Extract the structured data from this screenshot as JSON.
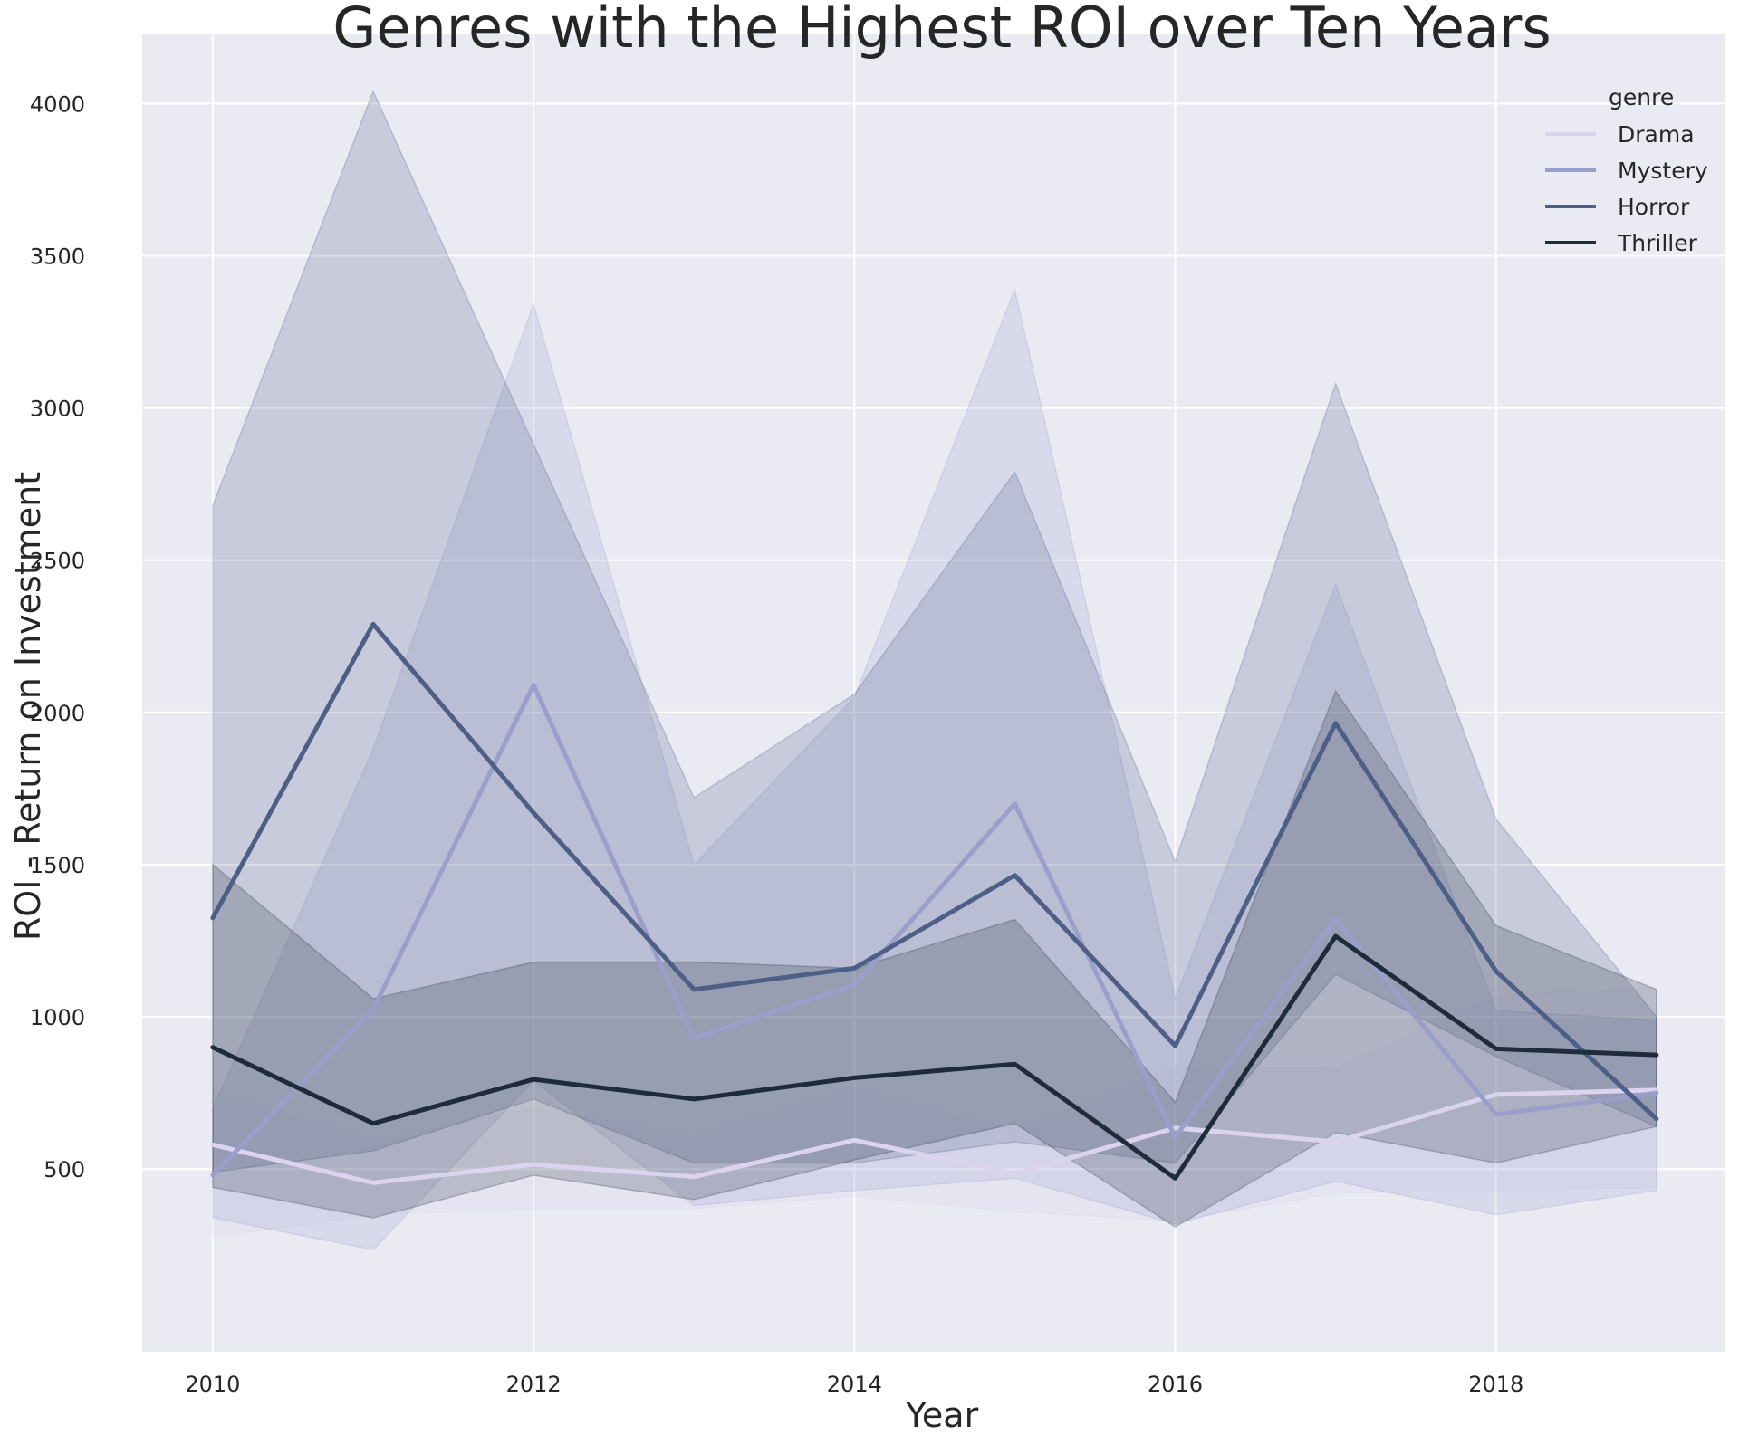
{
  "chart_data": {
    "type": "line",
    "title": "Genres with the Highest ROI over Ten Years",
    "xlabel": "Year",
    "ylabel": "ROI - Return on Investment",
    "xlim": [
      2009.56,
      2019.43
    ],
    "ylim": [
      -100,
      4230
    ],
    "x_ticks": [
      2010,
      2012,
      2014,
      2016,
      2018
    ],
    "y_ticks": [
      500,
      1000,
      1500,
      2000,
      2500,
      3000,
      3500,
      4000
    ],
    "grid": true,
    "legend": {
      "title": "genre",
      "position": "top-right"
    },
    "x": [
      2010,
      2011,
      2012,
      2013,
      2014,
      2015,
      2016,
      2017,
      2018,
      2019
    ],
    "series": [
      {
        "name": "Drama",
        "color": "#dcd3ee",
        "values": [
          580,
          455,
          515,
          475,
          595,
          485,
          635,
          590,
          745,
          760
        ],
        "ci_low": [
          275,
          350,
          370,
          370,
          410,
          360,
          330,
          420,
          430,
          440
        ],
        "ci_high": [
          760,
          600,
          700,
          615,
          770,
          630,
          840,
          830,
          1070,
          1100
        ]
      },
      {
        "name": "Mystery",
        "color": "#9a9ecb",
        "values": [
          480,
          1025,
          2090,
          930,
          1105,
          1700,
          605,
          1320,
          680,
          750
        ],
        "ci_low": [
          340,
          235,
          790,
          380,
          430,
          470,
          320,
          460,
          350,
          430
        ],
        "ci_high": [
          700,
          1880,
          3340,
          1500,
          2050,
          3390,
          1060,
          2420,
          1020,
          990
        ]
      },
      {
        "name": "Horror",
        "color": "#4d5f87",
        "values": [
          1325,
          2290,
          1670,
          1090,
          1160,
          1465,
          905,
          1965,
          1150,
          665
        ],
        "ci_low": [
          490,
          560,
          730,
          520,
          520,
          590,
          520,
          1140,
          870,
          640
        ],
        "ci_high": [
          2680,
          4040,
          2880,
          1720,
          2060,
          2790,
          1510,
          3080,
          1650,
          1000
        ]
      },
      {
        "name": "Thriller",
        "color": "#1e2c3a",
        "values": [
          900,
          650,
          795,
          730,
          800,
          845,
          470,
          1265,
          895,
          875
        ],
        "ci_low": [
          440,
          340,
          480,
          400,
          530,
          650,
          310,
          620,
          520,
          640
        ],
        "ci_high": [
          1500,
          1060,
          1180,
          1180,
          1160,
          1320,
          720,
          2070,
          1300,
          1090
        ]
      }
    ]
  }
}
